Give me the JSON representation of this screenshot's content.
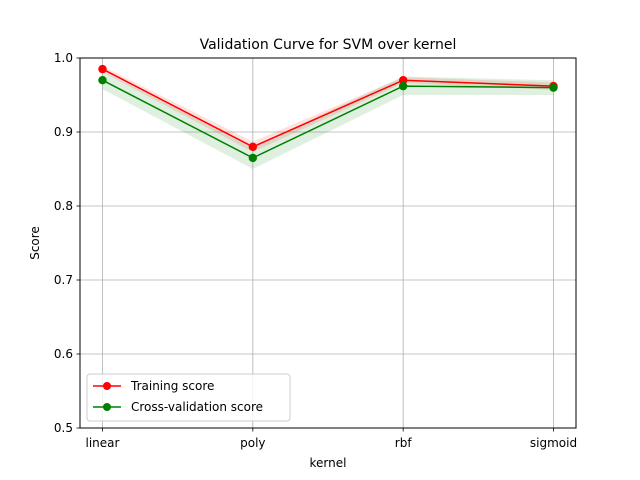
{
  "chart_data": {
    "type": "line",
    "title": "Validation Curve for SVM over kernel",
    "xlabel": "kernel",
    "ylabel": "Score",
    "categories": [
      "linear",
      "poly",
      "rbf",
      "sigmoid"
    ],
    "ylim": [
      0.5,
      1.0
    ],
    "yticks": [
      "0.5",
      "0.6",
      "0.7",
      "0.8",
      "0.9",
      "1.0"
    ],
    "grid": true,
    "legend_position": "lower-left",
    "series": [
      {
        "name": "Training score",
        "color": "#ff0000",
        "values": [
          0.985,
          0.88,
          0.97,
          0.962
        ],
        "band_lower": [
          0.981,
          0.873,
          0.966,
          0.957
        ],
        "band_upper": [
          0.989,
          0.887,
          0.974,
          0.967
        ]
      },
      {
        "name": "Cross-validation score",
        "color": "#008000",
        "values": [
          0.97,
          0.865,
          0.962,
          0.96
        ],
        "band_lower": [
          0.958,
          0.85,
          0.95,
          0.95
        ],
        "band_upper": [
          0.982,
          0.88,
          0.975,
          0.97
        ]
      }
    ]
  }
}
